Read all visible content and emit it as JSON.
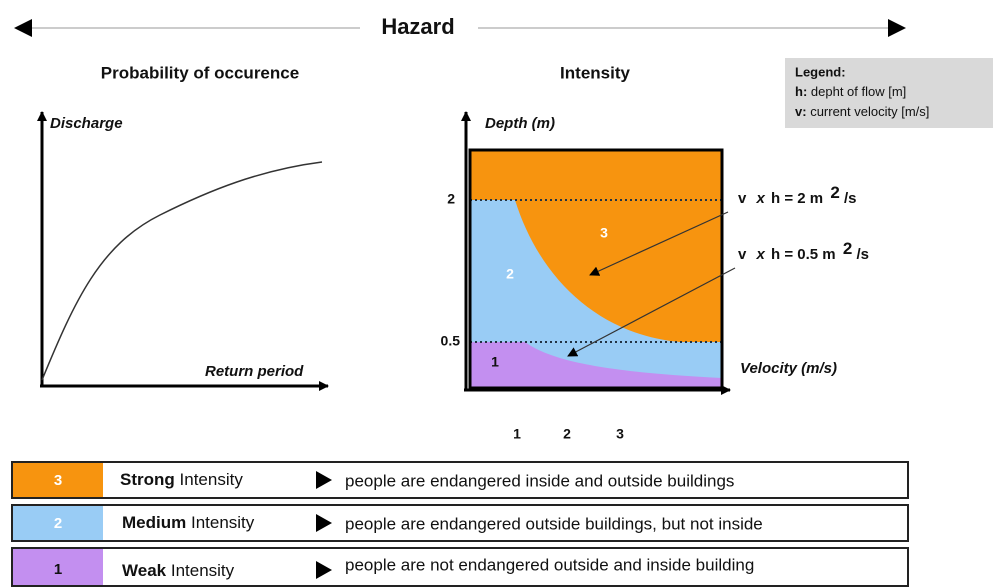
{
  "header": {
    "title": "Hazard"
  },
  "left_panel": {
    "title": "Probability of occurence",
    "y_axis": "Discharge",
    "x_axis": "Return period"
  },
  "right_panel": {
    "title": "Intensity",
    "y_axis": "Depth (m)",
    "x_axis": "Velocity (m/s)",
    "y_ticks": [
      "2",
      "0.5"
    ],
    "x_ticks": [
      "1",
      "2",
      "3"
    ],
    "zones": [
      "3",
      "2",
      "1"
    ],
    "curves": [
      {
        "v": "v",
        "times": "x",
        "rest": "h = 2 m",
        "sup": "2",
        "unit": "/s"
      },
      {
        "v": "v",
        "times": "x",
        "rest": "h = 0.5 m",
        "sup": "2",
        "unit": "/s"
      }
    ]
  },
  "legend": {
    "title": "Legend:",
    "items": [
      {
        "key": "h:",
        "text": "depht of flow [m]"
      },
      {
        "key": "v:",
        "text": "current velocity [m/s]"
      }
    ]
  },
  "table": {
    "rows": [
      {
        "level": "3",
        "strength": "Strong",
        "word": "Intensity",
        "description": "people are endangered inside and outside buildings"
      },
      {
        "level": "2",
        "strength": "Medium",
        "word": "Intensity",
        "description": "people are endangered outside buildings, but not inside"
      },
      {
        "level": "1",
        "strength": "Weak",
        "word": "Intensity",
        "description": "people are not endangered outside and inside building"
      }
    ]
  }
}
